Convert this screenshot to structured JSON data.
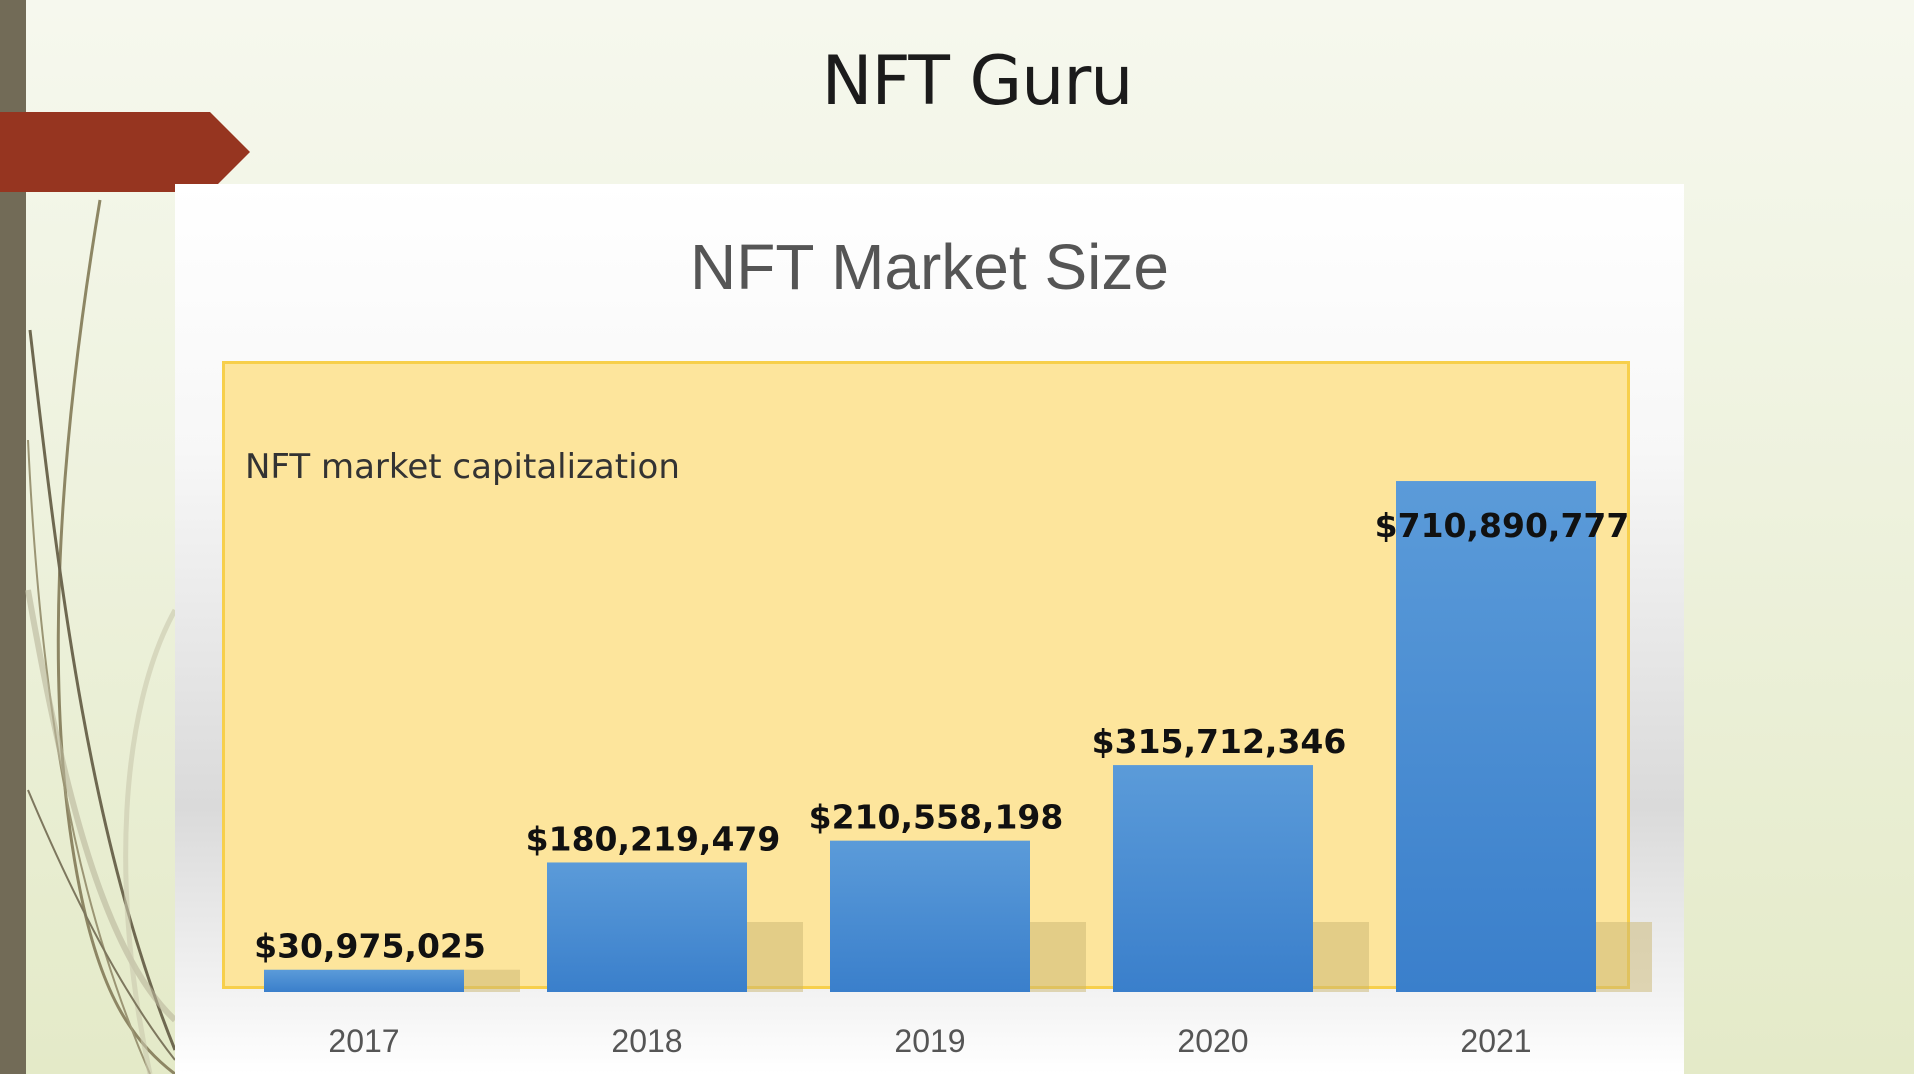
{
  "slide": {
    "title": "NFT Guru"
  },
  "colors": {
    "bar": "#4a8fd4",
    "plot_bg": "#fde59c",
    "accent": "#963520",
    "sidebar": "#726b57"
  },
  "chart_data": {
    "type": "bar",
    "title": "NFT Market Size",
    "series_label": "NFT market capitalization",
    "categories": [
      "2017",
      "2018",
      "2019",
      "2020",
      "2021"
    ],
    "values": [
      30975025,
      180219479,
      210558198,
      315712346,
      710890777
    ],
    "data_labels": [
      "$30,975,025",
      "$180,219,479",
      "$210,558,198",
      "$315,712,346",
      "$710,890,777"
    ],
    "xlabel": "",
    "ylabel": "",
    "ylim": [
      0,
      800000000
    ],
    "legend": "none",
    "grid": false
  }
}
